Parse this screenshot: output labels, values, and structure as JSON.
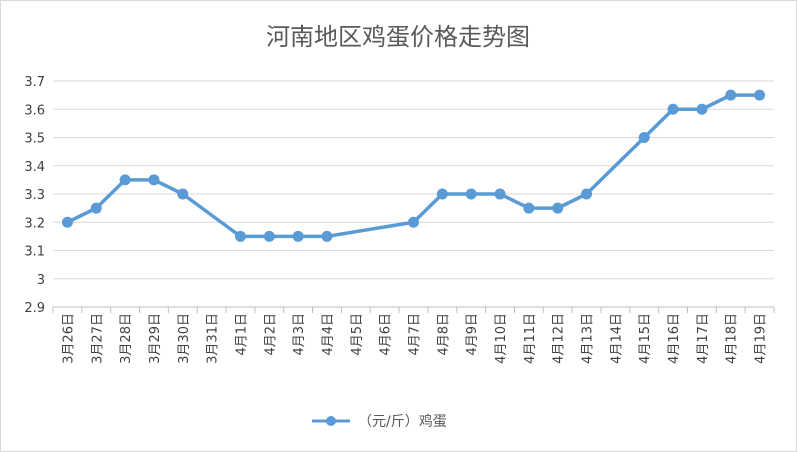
{
  "chart_data": {
    "type": "line",
    "title": "河南地区鸡蛋价格走势图",
    "xlabel": "",
    "ylabel": "",
    "categories": [
      "3月26日",
      "3月27日",
      "3月28日",
      "3月29日",
      "3月30日",
      "3月31日",
      "4月1日",
      "4月2日",
      "4月3日",
      "4月4日",
      "4月5日",
      "4月6日",
      "4月7日",
      "4月8日",
      "4月9日",
      "4月10日",
      "4月11日",
      "4月12日",
      "4月13日",
      "4月14日",
      "4月15日",
      "4月16日",
      "4月17日",
      "4月18日",
      "4月19日"
    ],
    "series": [
      {
        "name": "（元/斤）鸡蛋",
        "color": "#5b9bd5",
        "values": [
          3.2,
          3.25,
          3.35,
          3.35,
          3.3,
          null,
          3.15,
          3.15,
          3.15,
          3.15,
          null,
          null,
          3.2,
          3.3,
          3.3,
          3.3,
          3.25,
          3.25,
          3.3,
          null,
          3.5,
          3.6,
          3.6,
          3.65,
          3.65
        ]
      }
    ],
    "ylim": [
      2.9,
      3.7
    ],
    "yticks": [
      "2.9",
      "3",
      "3.1",
      "3.2",
      "3.3",
      "3.4",
      "3.5",
      "3.6",
      "3.7"
    ],
    "grid": true,
    "legend_position": "bottom",
    "gap_handling": "connect",
    "colors": {
      "gridline": "#d9d9d9",
      "axis": "#bfbfbf",
      "text": "#595959"
    }
  }
}
